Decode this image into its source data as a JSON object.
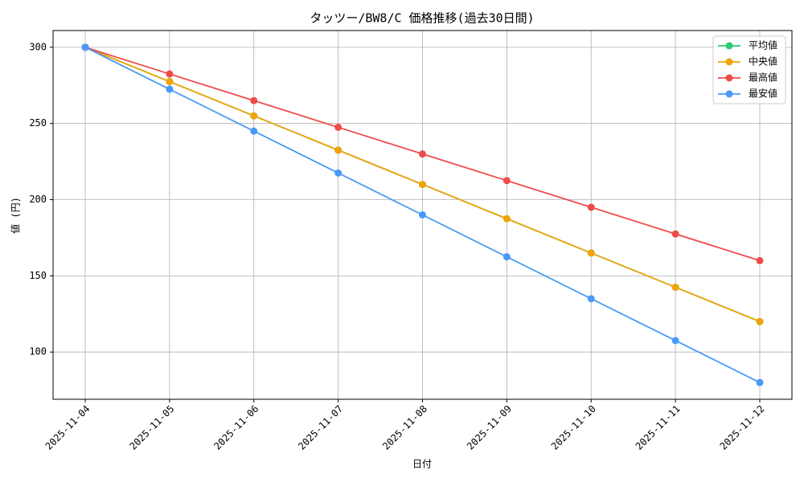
{
  "chart_data": {
    "type": "line",
    "title": "タッツー/BW8/C 価格推移(過去30日間)",
    "x_label": "日付",
    "y_label": "値 (円)",
    "categories": [
      "2025-11-04",
      "2025-11-05",
      "2025-11-06",
      "2025-11-07",
      "2025-11-08",
      "2025-11-09",
      "2025-11-10",
      "2025-11-11",
      "2025-11-12"
    ],
    "series": [
      {
        "name": "平均値",
        "color": "#2ecc71",
        "values": [
          300,
          277.5,
          255,
          232.5,
          210,
          187.5,
          165,
          142.5,
          120
        ]
      },
      {
        "name": "中央値",
        "color": "#f0a30a",
        "values": [
          300,
          277.5,
          255,
          232.5,
          210,
          187.5,
          165,
          142.5,
          120
        ]
      },
      {
        "name": "最高値",
        "color": "#f04b4b",
        "values": [
          300,
          282.5,
          265,
          247.5,
          230,
          212.5,
          195,
          177.5,
          160
        ]
      },
      {
        "name": "最安値",
        "color": "#4a9af5",
        "values": [
          300,
          272.5,
          245,
          217.5,
          190,
          162.5,
          135,
          107.5,
          80
        ]
      }
    ],
    "ylim": [
      69,
      311
    ],
    "yticks": [
      100,
      150,
      200,
      250,
      300
    ],
    "grid": true,
    "legend": "upper-right"
  }
}
